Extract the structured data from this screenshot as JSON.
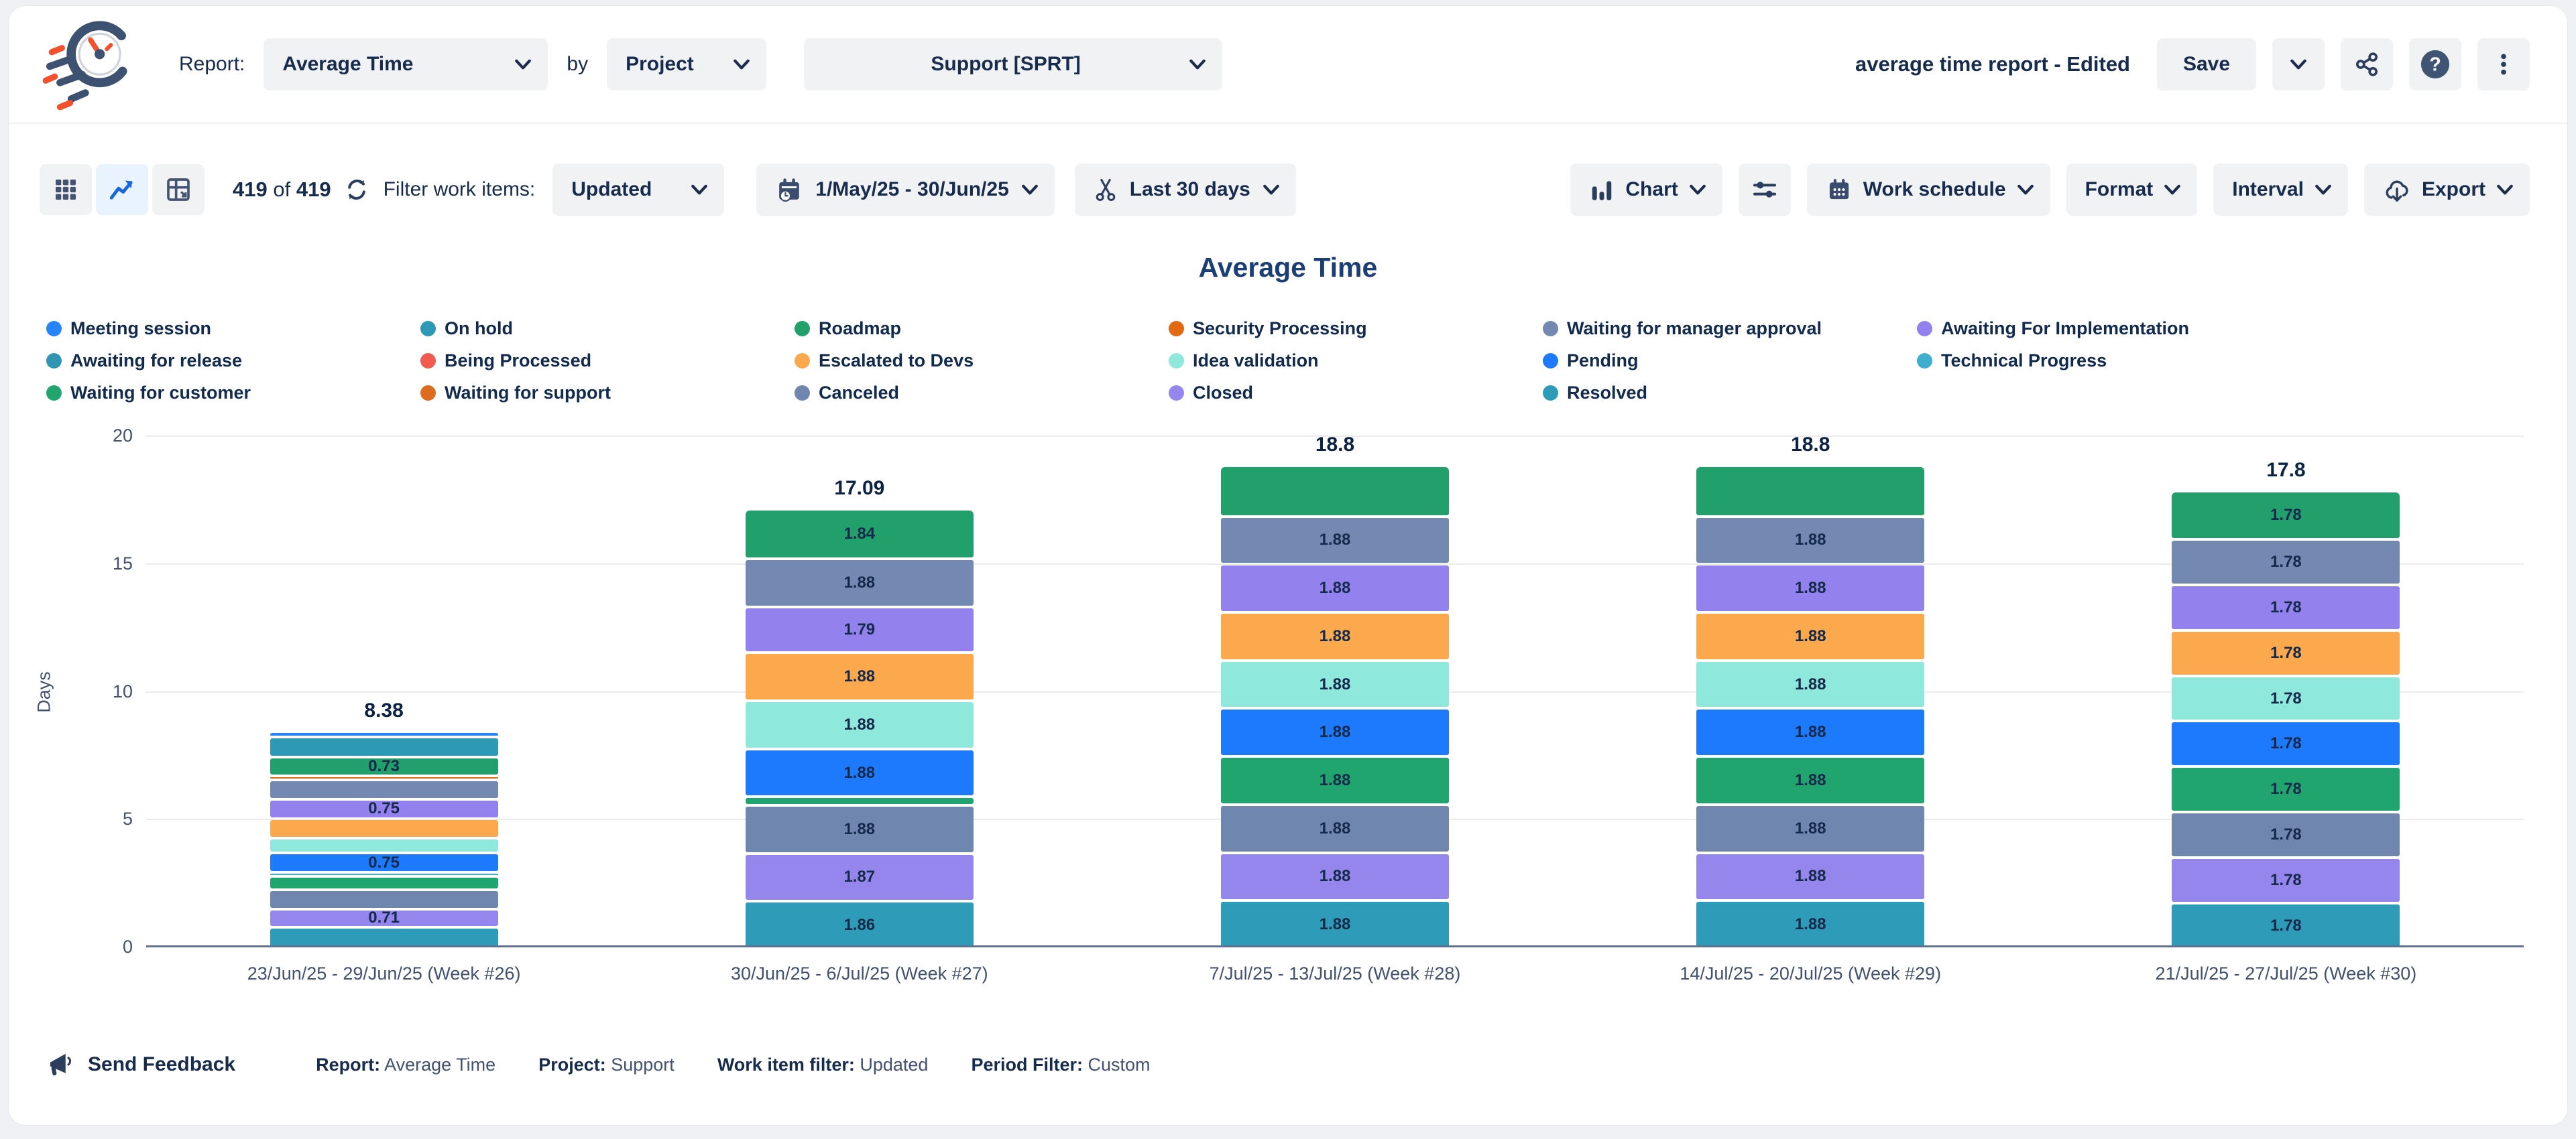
{
  "header": {
    "report_label": "Report:",
    "report_value": "Average Time",
    "by_label": "by",
    "group_value": "Project",
    "project_value": "Support [SPRT]",
    "doc_title": "average time report - Edited",
    "save_label": "Save"
  },
  "toolbar": {
    "count_current": "419",
    "count_of": "of",
    "count_total": "419",
    "filter_label": "Filter work items:",
    "filter_value": "Updated",
    "date_range": "1/May/25 - 30/Jun/25",
    "trim_value": "Last 30 days",
    "chart_label": "Chart",
    "work_schedule_label": "Work schedule",
    "format_label": "Format",
    "interval_label": "Interval",
    "export_label": "Export"
  },
  "chart_data": {
    "type": "bar",
    "subtype": "stacked-vertical",
    "title": "Average Time",
    "ylabel": "Days",
    "ylim": [
      0,
      20
    ],
    "yticks": [
      0,
      5,
      10,
      15,
      20
    ],
    "grid": "horizontal",
    "legend_position": "top-left, 3 rows x 6 columns",
    "categories": [
      "23/Jun/25 - 29/Jun/25 (Week #26)",
      "30/Jun/25 - 6/Jul/25 (Week #27)",
      "7/Jul/25 - 13/Jul/25 (Week #28)",
      "14/Jul/25 - 20/Jul/25 (Week #29)",
      "21/Jul/25 - 27/Jul/25 (Week #30)"
    ],
    "totals": [
      8.38,
      17.09,
      18.8,
      18.8,
      17.8
    ],
    "statuses": [
      {
        "name": "Meeting session",
        "color": "#2684FF"
      },
      {
        "name": "On hold",
        "color": "#2E99B5"
      },
      {
        "name": "Roadmap",
        "color": "#22A06B"
      },
      {
        "name": "Security Processing",
        "color": "#E2690F"
      },
      {
        "name": "Waiting for manager approval",
        "color": "#7389B2"
      },
      {
        "name": "Awaiting For Implementation",
        "color": "#9381EE"
      },
      {
        "name": "Awaiting for release",
        "color": "#3095B1"
      },
      {
        "name": "Being Processed",
        "color": "#F15B50"
      },
      {
        "name": "Escalated to Devs",
        "color": "#FCA94E"
      },
      {
        "name": "Idea validation",
        "color": "#8FE8DC"
      },
      {
        "name": "Pending",
        "color": "#1D7AFC"
      },
      {
        "name": "Technical Progress",
        "color": "#3FAECC"
      },
      {
        "name": "Waiting for customer",
        "color": "#20A56F"
      },
      {
        "name": "Waiting for support",
        "color": "#DD6B20"
      },
      {
        "name": "Canceled",
        "color": "#6F87AF"
      },
      {
        "name": "Closed",
        "color": "#9586ED"
      },
      {
        "name": "Resolved",
        "color": "#2E9BB8"
      }
    ],
    "bars": [
      {
        "category": "23/Jun/25 - 29/Jun/25 (Week #26)",
        "total": 8.38,
        "segments_top_down": [
          {
            "status": "Meeting session",
            "value": 0.12,
            "label": ""
          },
          {
            "status": "On hold",
            "value": 0.78,
            "label": ""
          },
          {
            "status": "Roadmap",
            "value": 0.73,
            "label": "0.73"
          },
          {
            "status": "Security Processing",
            "value": 0.15,
            "label": ""
          },
          {
            "status": "Waiting for manager approval",
            "value": 0.76,
            "label": ""
          },
          {
            "status": "Awaiting For Implementation",
            "value": 0.75,
            "label": "0.75"
          },
          {
            "status": "Escalated to Devs",
            "value": 0.78,
            "label": ""
          },
          {
            "status": "Idea validation",
            "value": 0.58,
            "label": ""
          },
          {
            "status": "Pending",
            "value": 0.75,
            "label": "0.75"
          },
          {
            "status": "Technical Progress",
            "value": 0.15,
            "label": ""
          },
          {
            "status": "Waiting for customer",
            "value": 0.52,
            "label": ""
          },
          {
            "status": "Canceled",
            "value": 0.76,
            "label": ""
          },
          {
            "status": "Closed",
            "value": 0.71,
            "label": "0.71"
          },
          {
            "status": "Resolved",
            "value": 0.84,
            "label": ""
          }
        ]
      },
      {
        "category": "30/Jun/25 - 6/Jul/25 (Week #27)",
        "total": 17.09,
        "segments_top_down": [
          {
            "status": "Roadmap",
            "value": 1.84,
            "label": "1.84"
          },
          {
            "status": "Waiting for manager approval",
            "value": 1.88,
            "label": "1.88"
          },
          {
            "status": "Awaiting For Implementation",
            "value": 1.79,
            "label": "1.79"
          },
          {
            "status": "Escalated to Devs",
            "value": 1.88,
            "label": "1.88"
          },
          {
            "status": "Idea validation",
            "value": 1.88,
            "label": "1.88"
          },
          {
            "status": "Pending",
            "value": 1.88,
            "label": "1.88"
          },
          {
            "status": "Waiting for customer",
            "value": 0.33,
            "label": ""
          },
          {
            "status": "Canceled",
            "value": 1.88,
            "label": "1.88"
          },
          {
            "status": "Closed",
            "value": 1.87,
            "label": "1.87"
          },
          {
            "status": "Resolved",
            "value": 1.86,
            "label": "1.86"
          }
        ]
      },
      {
        "category": "7/Jul/25 - 13/Jul/25 (Week #28)",
        "total": 18.8,
        "segments_top_down": [
          {
            "status": "Roadmap",
            "value": 1.88,
            "label": ""
          },
          {
            "status": "Waiting for manager approval",
            "value": 1.88,
            "label": "1.88"
          },
          {
            "status": "Awaiting For Implementation",
            "value": 1.88,
            "label": "1.88"
          },
          {
            "status": "Escalated to Devs",
            "value": 1.88,
            "label": "1.88"
          },
          {
            "status": "Idea validation",
            "value": 1.88,
            "label": "1.88"
          },
          {
            "status": "Pending",
            "value": 1.88,
            "label": "1.88"
          },
          {
            "status": "Waiting for customer",
            "value": 1.88,
            "label": "1.88"
          },
          {
            "status": "Canceled",
            "value": 1.88,
            "label": "1.88"
          },
          {
            "status": "Closed",
            "value": 1.88,
            "label": "1.88"
          },
          {
            "status": "Resolved",
            "value": 1.88,
            "label": "1.88"
          }
        ]
      },
      {
        "category": "14/Jul/25 - 20/Jul/25 (Week #29)",
        "total": 18.8,
        "segments_top_down": [
          {
            "status": "Roadmap",
            "value": 1.88,
            "label": ""
          },
          {
            "status": "Waiting for manager approval",
            "value": 1.88,
            "label": "1.88"
          },
          {
            "status": "Awaiting For Implementation",
            "value": 1.88,
            "label": "1.88"
          },
          {
            "status": "Escalated to Devs",
            "value": 1.88,
            "label": "1.88"
          },
          {
            "status": "Idea validation",
            "value": 1.88,
            "label": "1.88"
          },
          {
            "status": "Pending",
            "value": 1.88,
            "label": "1.88"
          },
          {
            "status": "Waiting for customer",
            "value": 1.88,
            "label": "1.88"
          },
          {
            "status": "Canceled",
            "value": 1.88,
            "label": "1.88"
          },
          {
            "status": "Closed",
            "value": 1.88,
            "label": "1.88"
          },
          {
            "status": "Resolved",
            "value": 1.88,
            "label": "1.88"
          }
        ]
      },
      {
        "category": "21/Jul/25 - 27/Jul/25 (Week #30)",
        "total": 17.8,
        "segments_top_down": [
          {
            "status": "Roadmap",
            "value": 1.78,
            "label": "1.78"
          },
          {
            "status": "Waiting for manager approval",
            "value": 1.78,
            "label": "1.78"
          },
          {
            "status": "Awaiting For Implementation",
            "value": 1.78,
            "label": "1.78"
          },
          {
            "status": "Escalated to Devs",
            "value": 1.78,
            "label": "1.78"
          },
          {
            "status": "Idea validation",
            "value": 1.78,
            "label": "1.78"
          },
          {
            "status": "Pending",
            "value": 1.78,
            "label": "1.78"
          },
          {
            "status": "Waiting for customer",
            "value": 1.78,
            "label": "1.78"
          },
          {
            "status": "Canceled",
            "value": 1.78,
            "label": "1.78"
          },
          {
            "status": "Closed",
            "value": 1.78,
            "label": "1.78"
          },
          {
            "status": "Resolved",
            "value": 1.78,
            "label": "1.78"
          }
        ]
      }
    ]
  },
  "footer": {
    "feedback_label": "Send Feedback",
    "items": [
      {
        "label": "Report:",
        "value": "Average Time"
      },
      {
        "label": "Project:",
        "value": "Support"
      },
      {
        "label": "Work item filter:",
        "value": "Updated"
      },
      {
        "label": "Period Filter:",
        "value": "Custom"
      }
    ]
  }
}
